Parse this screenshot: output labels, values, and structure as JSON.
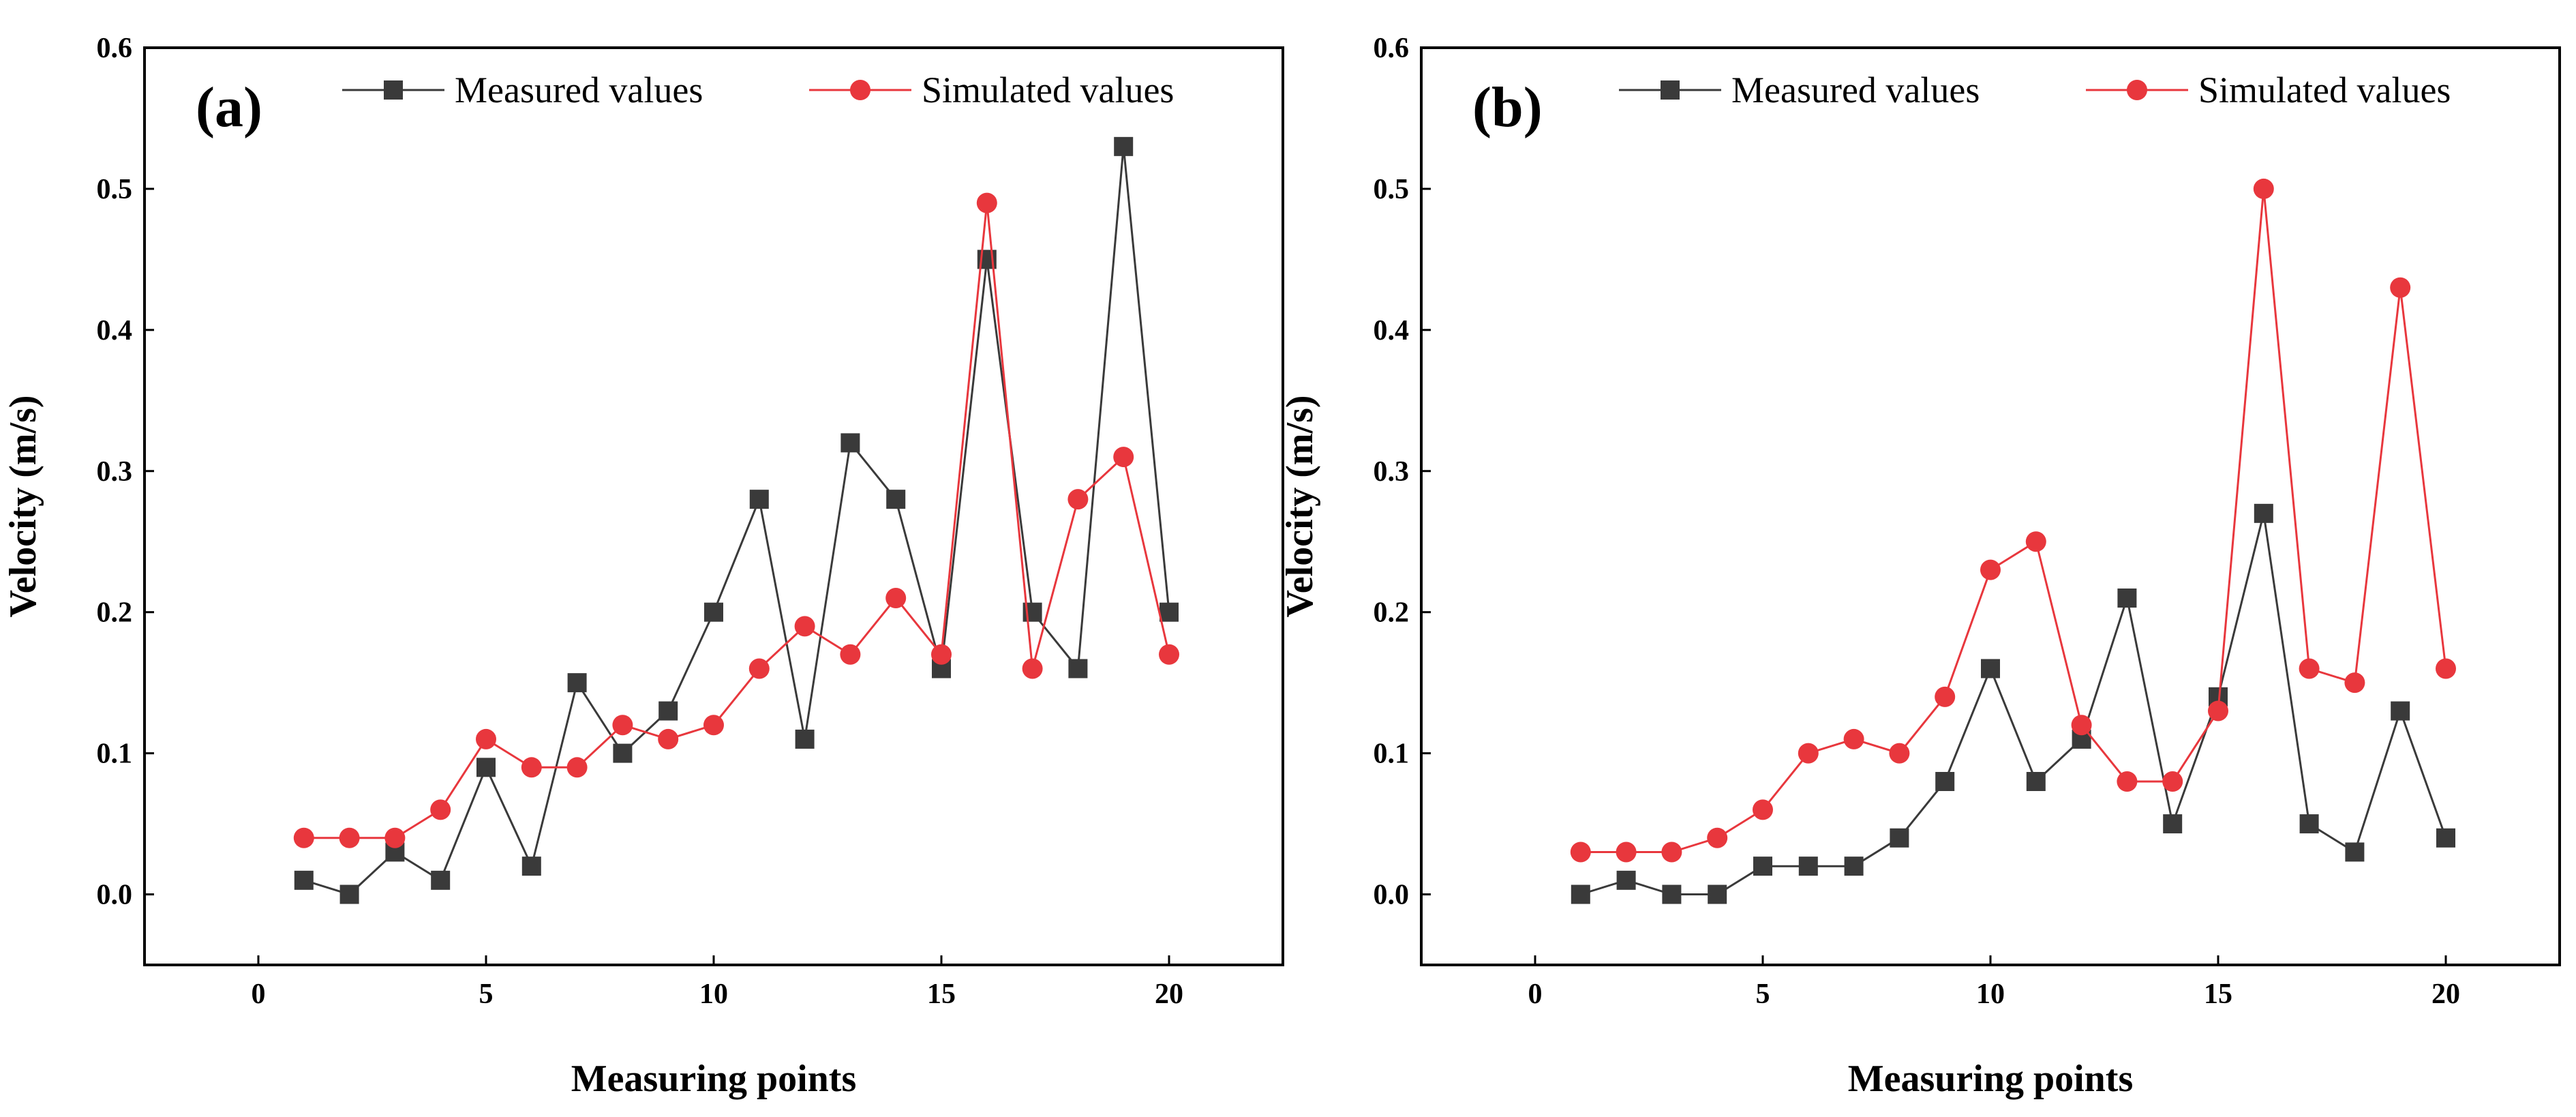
{
  "colors": {
    "measured": "#3a3a3a",
    "simulated": "#e8373d",
    "axis": "#000000"
  },
  "chart_data": [
    {
      "type": "line",
      "panel_label": "(a)",
      "title": "",
      "xlabel": "Measuring points",
      "ylabel": "Velocity (m/s)",
      "xlim": [
        -2.5,
        22.5
      ],
      "ylim": [
        -0.05,
        0.6
      ],
      "xticks": [
        0,
        5,
        10,
        15,
        20
      ],
      "xtick_labels": [
        "0",
        "5",
        "10",
        "15",
        "20"
      ],
      "yticks": [
        0.0,
        0.1,
        0.2,
        0.3,
        0.4,
        0.5,
        0.6
      ],
      "ytick_labels": [
        "0.0",
        "0.1",
        "0.2",
        "0.3",
        "0.4",
        "0.5",
        "0.6"
      ],
      "legend_position": "top",
      "x": [
        1,
        2,
        3,
        4,
        5,
        6,
        7,
        8,
        9,
        10,
        11,
        12,
        13,
        14,
        15,
        16,
        17,
        18,
        19,
        20
      ],
      "series": [
        {
          "name": "Measured values",
          "marker": "square",
          "color_key": "measured",
          "values": [
            0.01,
            0.0,
            0.03,
            0.01,
            0.09,
            0.02,
            0.15,
            0.1,
            0.13,
            0.2,
            0.28,
            0.11,
            0.32,
            0.28,
            0.16,
            0.45,
            0.2,
            0.16,
            0.53,
            0.2
          ]
        },
        {
          "name": "Simulated values",
          "marker": "circle",
          "color_key": "simulated",
          "values": [
            0.04,
            0.04,
            0.04,
            0.06,
            0.11,
            0.09,
            0.09,
            0.12,
            0.11,
            0.12,
            0.16,
            0.19,
            0.17,
            0.21,
            0.17,
            0.49,
            0.16,
            0.28,
            0.31,
            0.17
          ]
        }
      ]
    },
    {
      "type": "line",
      "panel_label": "(b)",
      "title": "",
      "xlabel": "Measuring points",
      "ylabel": "Velocity (m/s)",
      "xlim": [
        -2.5,
        22.5
      ],
      "ylim": [
        -0.05,
        0.6
      ],
      "xticks": [
        0,
        5,
        10,
        15,
        20
      ],
      "xtick_labels": [
        "0",
        "5",
        "10",
        "15",
        "20"
      ],
      "yticks": [
        0.0,
        0.1,
        0.2,
        0.3,
        0.4,
        0.5,
        0.6
      ],
      "ytick_labels": [
        "0.0",
        "0.1",
        "0.2",
        "0.3",
        "0.4",
        "0.5",
        "0.6"
      ],
      "legend_position": "top",
      "x": [
        1,
        2,
        3,
        4,
        5,
        6,
        7,
        8,
        9,
        10,
        11,
        12,
        13,
        14,
        15,
        16,
        17,
        18,
        19,
        20
      ],
      "series": [
        {
          "name": "Measured values",
          "marker": "square",
          "color_key": "measured",
          "values": [
            0.0,
            0.01,
            0.0,
            0.0,
            0.02,
            0.02,
            0.02,
            0.04,
            0.08,
            0.16,
            0.08,
            0.11,
            0.21,
            0.05,
            0.14,
            0.27,
            0.05,
            0.03,
            0.13,
            0.04
          ]
        },
        {
          "name": "Simulated values",
          "marker": "circle",
          "color_key": "simulated",
          "values": [
            0.03,
            0.03,
            0.03,
            0.04,
            0.06,
            0.1,
            0.11,
            0.1,
            0.14,
            0.23,
            0.25,
            0.12,
            0.08,
            0.08,
            0.13,
            0.5,
            0.16,
            0.15,
            0.43,
            0.16
          ]
        }
      ]
    }
  ]
}
